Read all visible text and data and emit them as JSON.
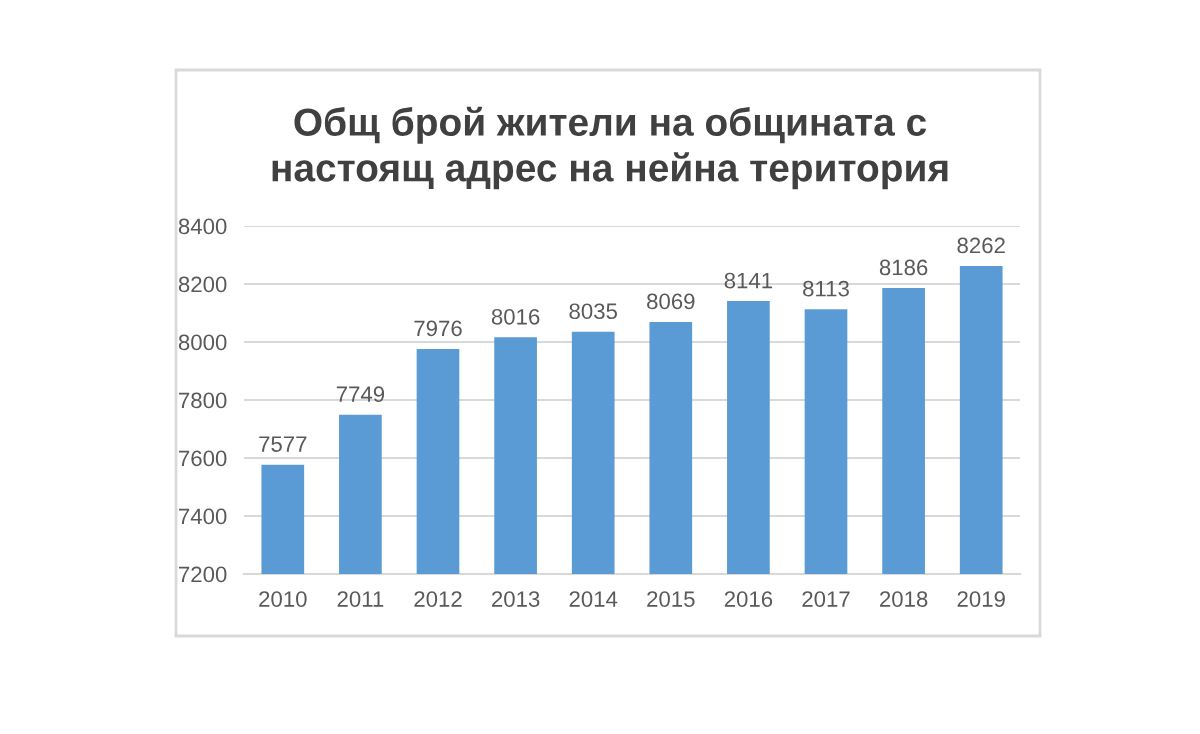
{
  "chart_data": {
    "type": "bar",
    "title": "Общ брой жители на общината с\nнастоящ адрес на нейна територия",
    "categories": [
      "2010",
      "2011",
      "2012",
      "2013",
      "2014",
      "2015",
      "2016",
      "2017",
      "2018",
      "2019"
    ],
    "values": [
      7577,
      7749,
      7976,
      8016,
      8035,
      8069,
      8141,
      8113,
      8186,
      8262
    ],
    "color": "#5b9bd5",
    "ylim": [
      7200,
      8400
    ],
    "yticks": [
      7200,
      7400,
      7600,
      7800,
      8000,
      8200,
      8400
    ],
    "grid": "y",
    "data_labels": true
  }
}
